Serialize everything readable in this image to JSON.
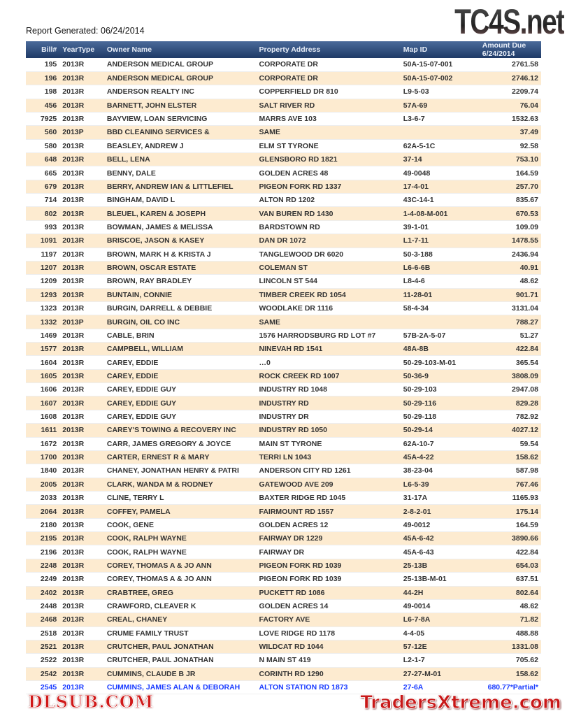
{
  "report_generated": "Report Generated: 06/24/2014",
  "logo": "TC4S.net",
  "watermarks": [
    "DLSUB.COM",
    "TradersXtreme.com"
  ],
  "columns": [
    "Bill#",
    "YearType",
    "Owner Name",
    "Property Address",
    "Map ID",
    "Amount Due  6/24/2014"
  ],
  "rows": [
    [
      "195",
      "2013R",
      "ANDERSON MEDICAL GROUP",
      "CORPORATE DR",
      "50A-15-07-001",
      "2761.58"
    ],
    [
      "196",
      "2013R",
      "ANDERSON MEDICAL GROUP",
      "CORPORATE DR",
      "50A-15-07-002",
      "2746.12"
    ],
    [
      "198",
      "2013R",
      "ANDERSON REALTY INC",
      "COPPERFIELD DR 810",
      "L9-5-03",
      "2209.74"
    ],
    [
      "456",
      "2013R",
      "BARNETT, JOHN ELSTER",
      "SALT RIVER RD",
      "57A-69",
      "76.04"
    ],
    [
      "7925",
      "2013R",
      "BAYVIEW, LOAN SERVICING",
      "MARRS AVE 103",
      "L3-6-7",
      "1532.63"
    ],
    [
      "560",
      "2013P",
      "BBD CLEANING SERVICES &",
      "SAME",
      "",
      "37.49"
    ],
    [
      "580",
      "2013R",
      "BEASLEY, ANDREW J",
      "ELM ST TYRONE",
      "62A-5-1C",
      "92.58"
    ],
    [
      "648",
      "2013R",
      "BELL, LENA",
      "GLENSBORO RD 1821",
      "37-14",
      "753.10"
    ],
    [
      "665",
      "2013R",
      "BENNY, DALE",
      "GOLDEN ACRES 48",
      "49-0048",
      "164.59"
    ],
    [
      "679",
      "2013R",
      "BERRY, ANDREW IAN & LITTLEFIEL",
      "PIGEON FORK RD 1337",
      "17-4-01",
      "257.70"
    ],
    [
      "714",
      "2013R",
      "BINGHAM, DAVID L",
      "ALTON RD 1202",
      "43C-14-1",
      "835.67"
    ],
    [
      "802",
      "2013R",
      "BLEUEL, KAREN & JOSEPH",
      "VAN BUREN RD 1430",
      "1-4-08-M-001",
      "670.53"
    ],
    [
      "993",
      "2013R",
      "BOWMAN, JAMES & MELISSA",
      "BARDSTOWN RD",
      "39-1-01",
      "109.09"
    ],
    [
      "1091",
      "2013R",
      "BRISCOE, JASON & KASEY",
      "DAN DR 1072",
      "L1-7-11",
      "1478.55"
    ],
    [
      "1197",
      "2013R",
      "BROWN, MARK H & KRISTA J",
      "TANGLEWOOD DR 6020",
      "50-3-188",
      "2436.94"
    ],
    [
      "1207",
      "2013R",
      "BROWN, OSCAR ESTATE",
      "COLEMAN ST",
      "L6-6-6B",
      "40.91"
    ],
    [
      "1209",
      "2013R",
      "BROWN, RAY BRADLEY",
      "LINCOLN ST 544",
      "L8-4-6",
      "48.62"
    ],
    [
      "1293",
      "2013R",
      "BUNTAIN, CONNIE",
      "TIMBER CREEK RD 1054",
      "11-28-01",
      "901.71"
    ],
    [
      "1323",
      "2013R",
      "BURGIN, DARRELL & DEBBIE",
      "WOODLAKE DR 1116",
      "58-4-34",
      "3131.04"
    ],
    [
      "1332",
      "2013P",
      "BURGIN, OIL CO INC",
      "SAME",
      "",
      "788.27"
    ],
    [
      "1469",
      "2013R",
      "CABLE, BRIN",
      "1576 HARRODSBURG RD LOT #7",
      "57B-2A-5-07",
      "51.27"
    ],
    [
      "1577",
      "2013R",
      "CAMPBELL, WILLIAM",
      "NINEVAH RD 1541",
      "48A-8B",
      "422.84"
    ],
    [
      "1604",
      "2013R",
      "CAREY, EDDIE",
      "…0",
      "50-29-103-M-01",
      "365.54"
    ],
    [
      "1605",
      "2013R",
      "CAREY, EDDIE",
      "ROCK CREEK RD 1007",
      "50-36-9",
      "3808.09"
    ],
    [
      "1606",
      "2013R",
      "CAREY, EDDIE GUY",
      "INDUSTRY RD 1048",
      "50-29-103",
      "2947.08"
    ],
    [
      "1607",
      "2013R",
      "CAREY, EDDIE GUY",
      "INDUSTRY RD",
      "50-29-116",
      "829.28"
    ],
    [
      "1608",
      "2013R",
      "CAREY, EDDIE GUY",
      "INDUSTRY DR",
      "50-29-118",
      "782.92"
    ],
    [
      "1611",
      "2013R",
      "CAREY'S TOWING & RECOVERY INC",
      "INDUSTRY RD 1050",
      "50-29-14",
      "4027.12"
    ],
    [
      "1672",
      "2013R",
      "CARR, JAMES GREGORY & JOYCE",
      "MAIN ST TYRONE",
      "62A-10-7",
      "59.54"
    ],
    [
      "1700",
      "2013R",
      "CARTER, ERNEST R & MARY",
      "TERRI LN 1043",
      "45A-4-22",
      "158.62"
    ],
    [
      "1840",
      "2013R",
      "CHANEY, JONATHAN HENRY & PATRI",
      "ANDERSON CITY RD 1261",
      "38-23-04",
      "587.98"
    ],
    [
      "2005",
      "2013R",
      "CLARK, WANDA M & RODNEY",
      "GATEWOOD AVE 209",
      "L6-5-39",
      "767.46"
    ],
    [
      "2033",
      "2013R",
      "CLINE, TERRY L",
      "BAXTER RIDGE RD 1045",
      "31-17A",
      "1165.93"
    ],
    [
      "2064",
      "2013R",
      "COFFEY, PAMELA",
      "FAIRMOUNT RD 1557",
      "2-8-2-01",
      "175.14"
    ],
    [
      "2180",
      "2013R",
      "COOK, GENE",
      "GOLDEN ACRES 12",
      "49-0012",
      "164.59"
    ],
    [
      "2195",
      "2013R",
      "COOK, RALPH WAYNE",
      "FAIRWAY DR 1229",
      "45A-6-42",
      "3890.66"
    ],
    [
      "2196",
      "2013R",
      "COOK, RALPH WAYNE",
      "FAIRWAY DR",
      "45A-6-43",
      "422.84"
    ],
    [
      "2248",
      "2013R",
      "COREY, THOMAS A & JO ANN",
      "PIGEON FORK RD 1039",
      "25-13B",
      "654.03"
    ],
    [
      "2249",
      "2013R",
      "COREY, THOMAS A & JO ANN",
      "PIGEON FORK RD 1039",
      "25-13B-M-01",
      "637.51"
    ],
    [
      "2402",
      "2013R",
      "CRABTREE, GREG",
      "PUCKETT RD 1086",
      "44-2H",
      "802.64"
    ],
    [
      "2448",
      "2013R",
      "CRAWFORD, CLEAVER K",
      "GOLDEN ACRES 14",
      "49-0014",
      "48.62"
    ],
    [
      "2468",
      "2013R",
      "CREAL, CHANEY",
      "FACTORY AVE",
      "L6-7-8A",
      "71.82"
    ],
    [
      "2518",
      "2013R",
      "CRUME FAMILY TRUST",
      "LOVE RIDGE RD 1178",
      "4-4-05",
      "488.88"
    ],
    [
      "2521",
      "2013R",
      "CRUTCHER, PAUL JONATHAN",
      "WILDCAT RD 1044",
      "57-12E",
      "1331.08"
    ],
    [
      "2522",
      "2013R",
      "CRUTCHER, PAUL JONATHAN",
      "N MAIN ST 419",
      "L2-1-7",
      "705.62"
    ],
    [
      "2542",
      "2013R",
      "CUMMINS, CLAUDE B JR",
      "CORINTH RD 1290",
      "27-27-M-01",
      "158.62"
    ],
    [
      "2545",
      "2013R",
      "CUMMINS, JAMES ALAN & DEBORAH",
      "ALTON STATION RD 1873",
      "27-6A",
      "680.77*Partial*"
    ]
  ],
  "colors": {
    "header": "#1f3a66",
    "alt_row": "#fdebd0",
    "partial_row_text": "#1a3cff"
  }
}
